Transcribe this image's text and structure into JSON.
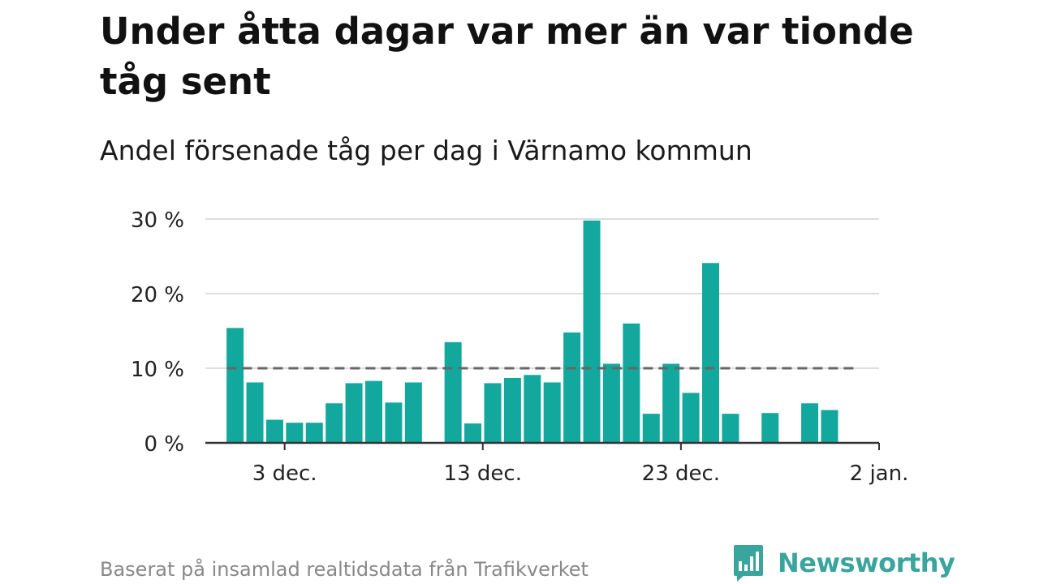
{
  "title": "Under åtta dagar var mer än var tionde tåg sent",
  "subtitle": "Andel försenade tåg per dag i Värnamo kommun",
  "source": "Baserat på insamlad realtidsdata från Trafikverket",
  "brand": {
    "name": "Newsworthy",
    "logo_icon": "bar-chart-speech-bubble-icon"
  },
  "colors": {
    "bar": "#13a89e",
    "grid": "#dddddd",
    "reference": "#666666",
    "axis": "#333333",
    "brand": "#3aa59c"
  },
  "chart_data": {
    "type": "bar",
    "x": [
      "2023-11-30",
      "2023-12-01",
      "2023-12-02",
      "2023-12-03",
      "2023-12-04",
      "2023-12-05",
      "2023-12-06",
      "2023-12-07",
      "2023-12-08",
      "2023-12-09",
      "2023-12-10",
      "2023-12-11",
      "2023-12-12",
      "2023-12-13",
      "2023-12-14",
      "2023-12-15",
      "2023-12-16",
      "2023-12-17",
      "2023-12-18",
      "2023-12-19",
      "2023-12-20",
      "2023-12-21",
      "2023-12-22",
      "2023-12-23",
      "2023-12-24",
      "2023-12-25",
      "2023-12-26",
      "2023-12-27",
      "2023-12-28",
      "2023-12-29",
      "2023-12-30",
      "2023-12-31"
    ],
    "values": [
      15.4,
      8.1,
      3.1,
      2.7,
      2.7,
      5.3,
      8.0,
      8.3,
      5.4,
      8.1,
      null,
      13.5,
      2.6,
      8.0,
      8.7,
      9.1,
      8.1,
      14.8,
      29.8,
      10.6,
      16.0,
      3.9,
      10.6,
      6.7,
      24.1,
      3.9,
      null,
      4.0,
      null,
      5.3,
      4.4,
      null
    ],
    "y_ticks": [
      {
        "value": 0,
        "label": "0 %"
      },
      {
        "value": 10,
        "label": "10 %"
      },
      {
        "value": 20,
        "label": "20 %"
      },
      {
        "value": 30,
        "label": "30 %"
      }
    ],
    "x_ticks": [
      {
        "date": "2023-12-03",
        "label": "3 dec."
      },
      {
        "date": "2023-12-13",
        "label": "13 dec."
      },
      {
        "date": "2023-12-23",
        "label": "23 dec."
      },
      {
        "date": "2024-01-02",
        "label": "2 jan."
      }
    ],
    "reference_line": 10,
    "ylim": [
      0,
      30
    ],
    "xlim": [
      "2023-11-29",
      "2024-01-02"
    ],
    "grid": true,
    "legend": false
  }
}
